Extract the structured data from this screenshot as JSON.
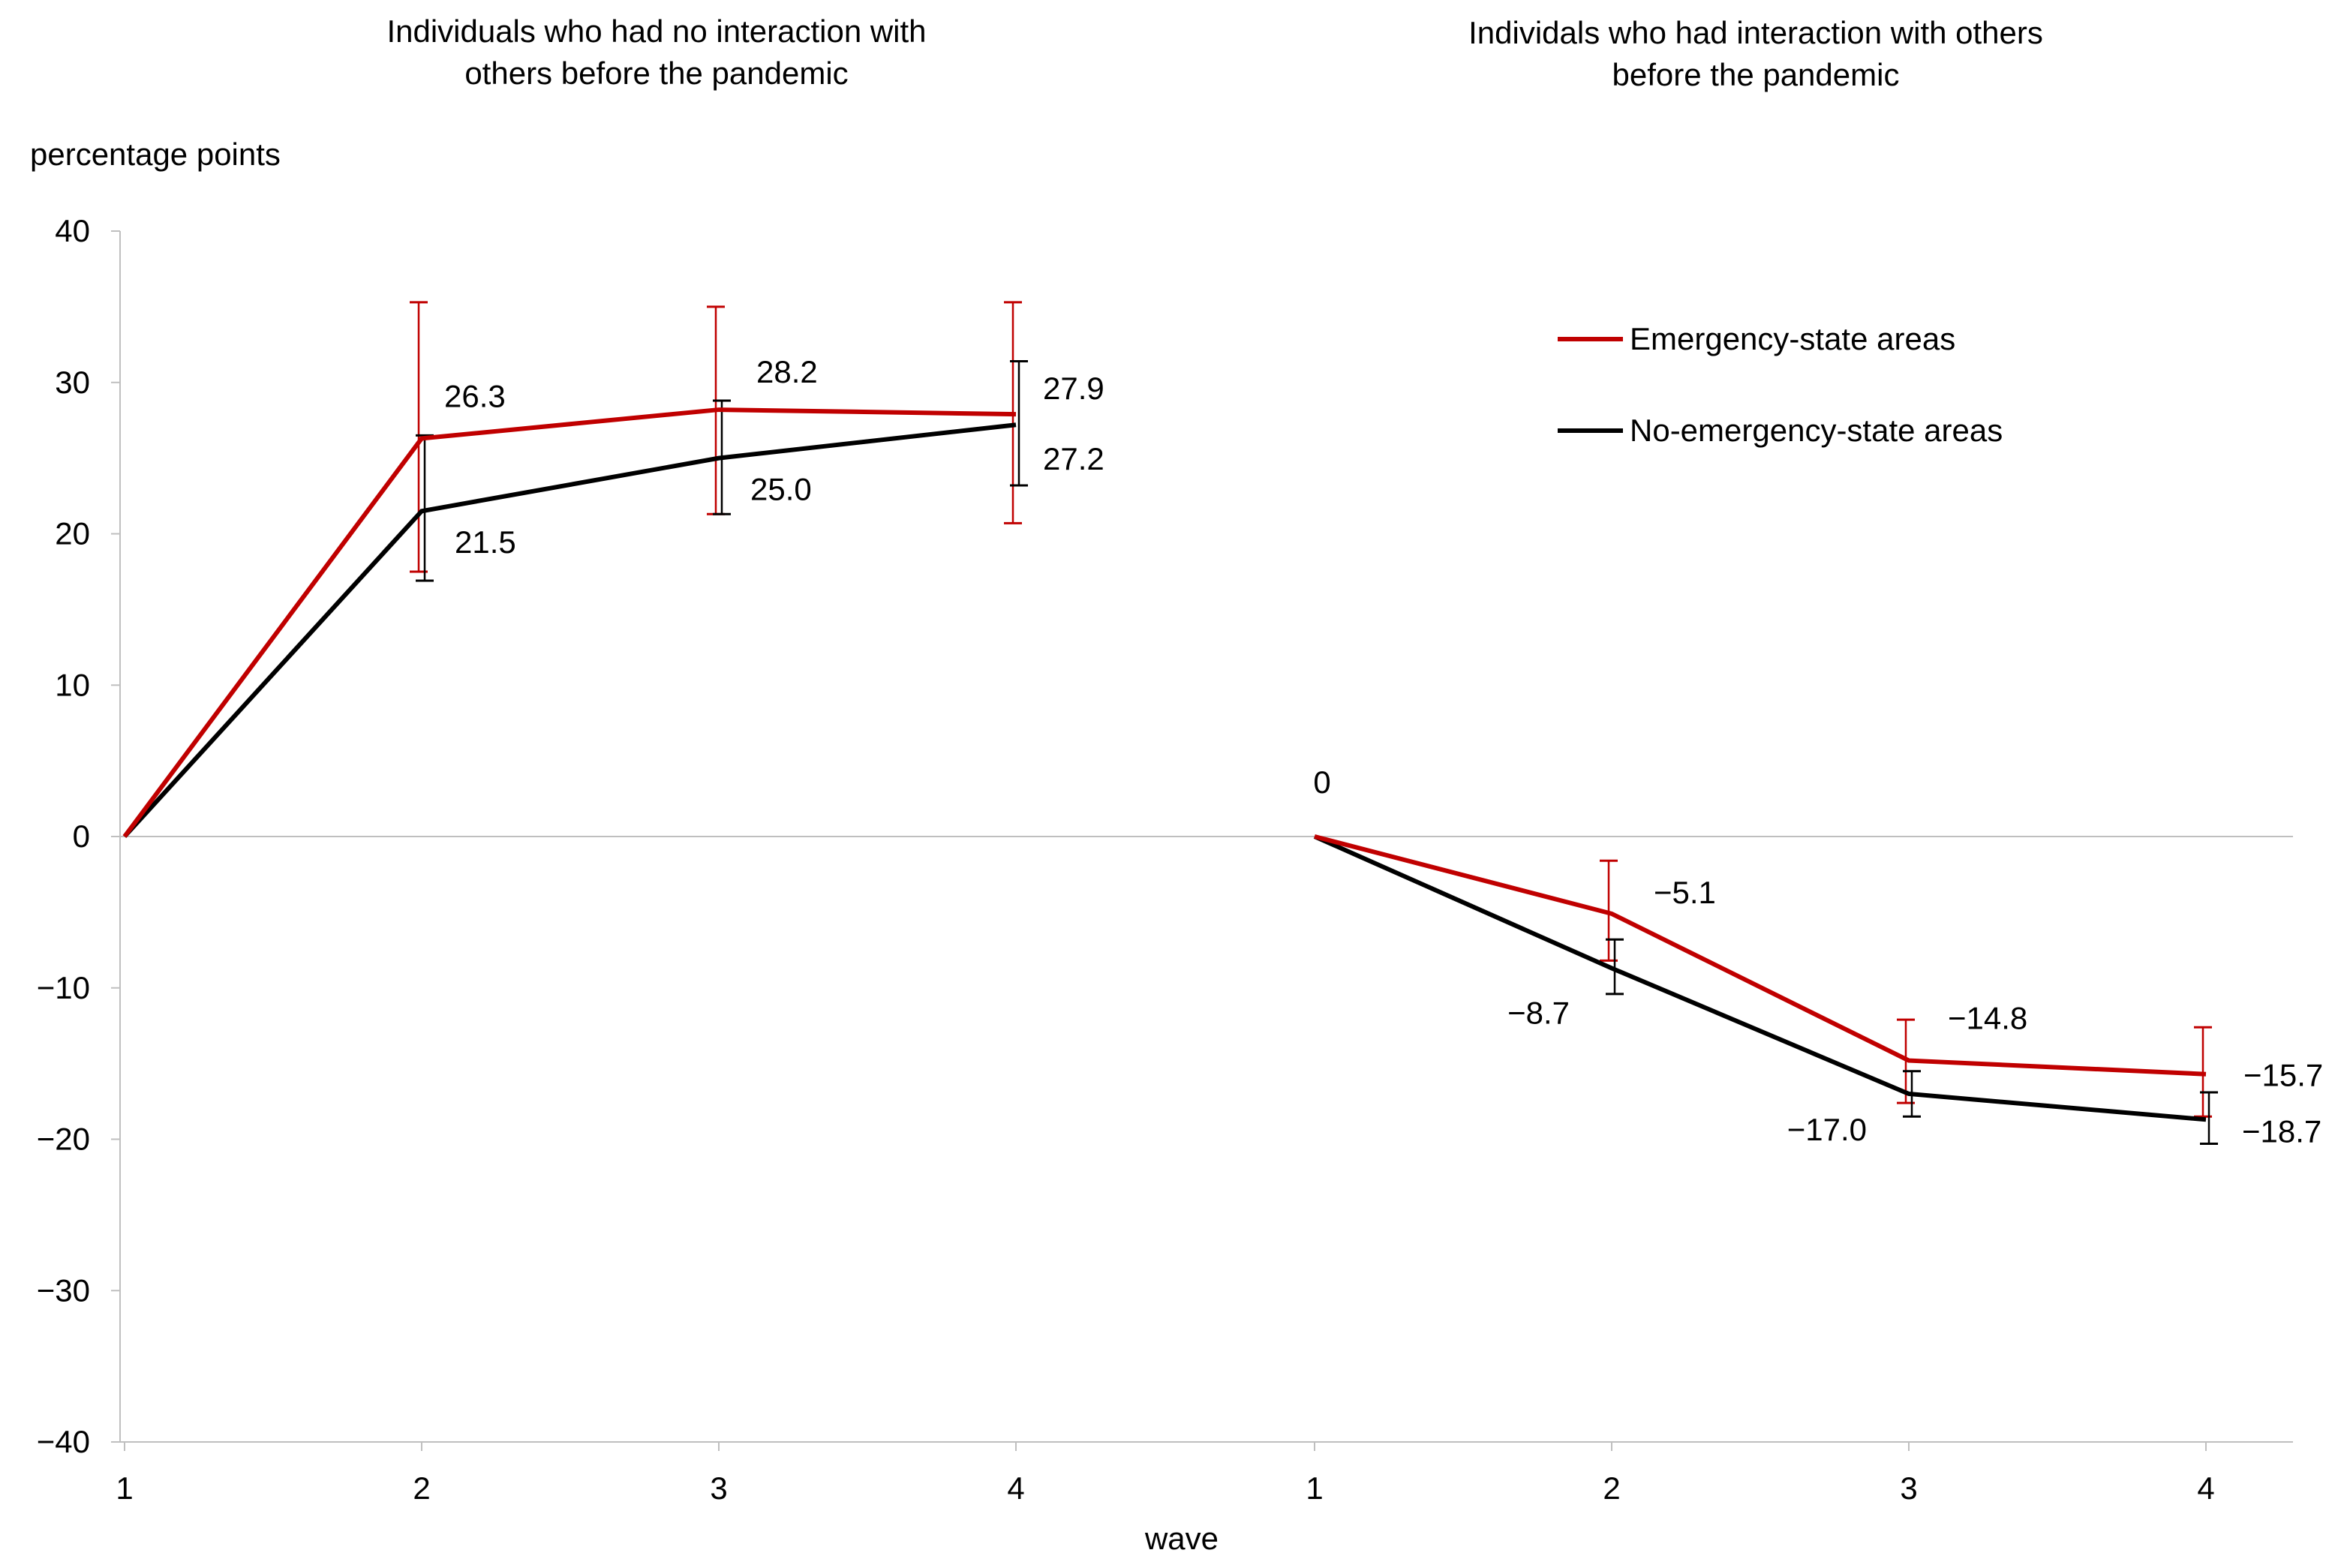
{
  "chart_data": {
    "type": "line",
    "ylabel": "percentage points",
    "xlabel": "wave",
    "ylim": [
      -40,
      40
    ],
    "yticks": [
      40,
      30,
      20,
      10,
      0,
      -10,
      -20,
      -30,
      -40
    ],
    "ytick_labels": [
      "40",
      "30",
      "20",
      "10",
      "0",
      "−10",
      "−20",
      "−30",
      "−40"
    ],
    "legend": {
      "position": "top-right",
      "entries": [
        {
          "name": "Emergency-state areas",
          "color": "#c00000"
        },
        {
          "name": "No-emergency-state areas",
          "color": "#000000"
        }
      ]
    },
    "panels": [
      {
        "title_lines": [
          "Individuals  who had no interaction with",
          "others before the pandemic"
        ],
        "x": [
          1,
          2,
          3,
          4
        ],
        "x_labels": [
          "1",
          "2",
          "3",
          "4"
        ],
        "series": [
          {
            "name": "Emergency-state areas",
            "color": "#c00000",
            "values": [
              0,
              26.3,
              28.2,
              27.9
            ],
            "labels": [
              "",
              "26.3",
              "28.2",
              "27.9"
            ],
            "ci_low": [
              null,
              17.5,
              21.3,
              20.7
            ],
            "ci_high": [
              null,
              35.3,
              35.0,
              35.3
            ]
          },
          {
            "name": "No-emergency-state areas",
            "color": "#000000",
            "values": [
              0,
              21.5,
              25.0,
              27.2
            ],
            "labels": [
              "",
              "21.5",
              "25.0",
              "27.2"
            ],
            "ci_low": [
              null,
              16.9,
              21.3,
              23.2
            ],
            "ci_high": [
              null,
              26.5,
              28.8,
              31.4
            ]
          }
        ]
      },
      {
        "title_lines": [
          "Individals  who had interaction with others",
          "before the pandemic"
        ],
        "x": [
          1,
          2,
          3,
          4
        ],
        "x_labels": [
          "1",
          "2",
          "3",
          "4"
        ],
        "series": [
          {
            "name": "Emergency-state areas",
            "color": "#c00000",
            "values": [
              0,
              -5.1,
              -14.8,
              -15.7
            ],
            "labels": [
              "0",
              "−5.1",
              "−14.8",
              "−15.7"
            ],
            "ci_low": [
              null,
              -8.2,
              -17.6,
              -18.5
            ],
            "ci_high": [
              null,
              -1.6,
              -12.1,
              -12.6
            ]
          },
          {
            "name": "No-emergency-state areas",
            "color": "#000000",
            "values": [
              0,
              -8.7,
              -17.0,
              -18.7
            ],
            "labels": [
              "",
              "−8.7",
              "−17.0",
              "−18.7"
            ],
            "ci_low": [
              null,
              -10.4,
              -18.5,
              -20.3
            ],
            "ci_high": [
              null,
              -6.8,
              -15.5,
              -16.9
            ]
          }
        ]
      }
    ]
  }
}
